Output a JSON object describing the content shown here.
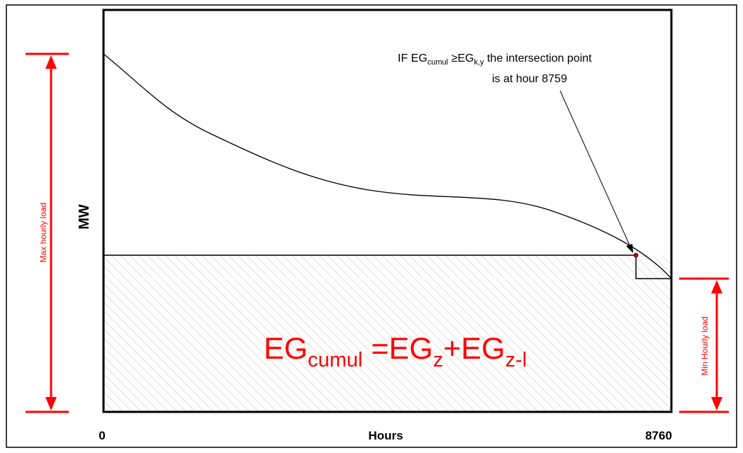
{
  "diagram": {
    "y_axis_label": "MW",
    "x_axis_label": "Hours",
    "x_start_label": "0",
    "x_end_label": "8760",
    "max_load_label": "Max hourly load",
    "min_load_label": "Min Hourly load",
    "annotation": {
      "line1_prefix": "IF EG",
      "line1_sub1": "cumul",
      "line1_mid": " ≥EG",
      "line1_sub2": "k,y",
      "line1_suffix": " the intersection point",
      "line2": "is at hour 8759"
    },
    "formula": {
      "eg1": "EG",
      "sub1": "cumul",
      "mid": " =EG",
      "sub2": "z",
      "plus": "+EG",
      "sub3": "z-l"
    },
    "colors": {
      "accent_red": "#ff0000",
      "line": "#000000",
      "hatch": "#c8c8c8",
      "marker": "#c00000"
    }
  }
}
